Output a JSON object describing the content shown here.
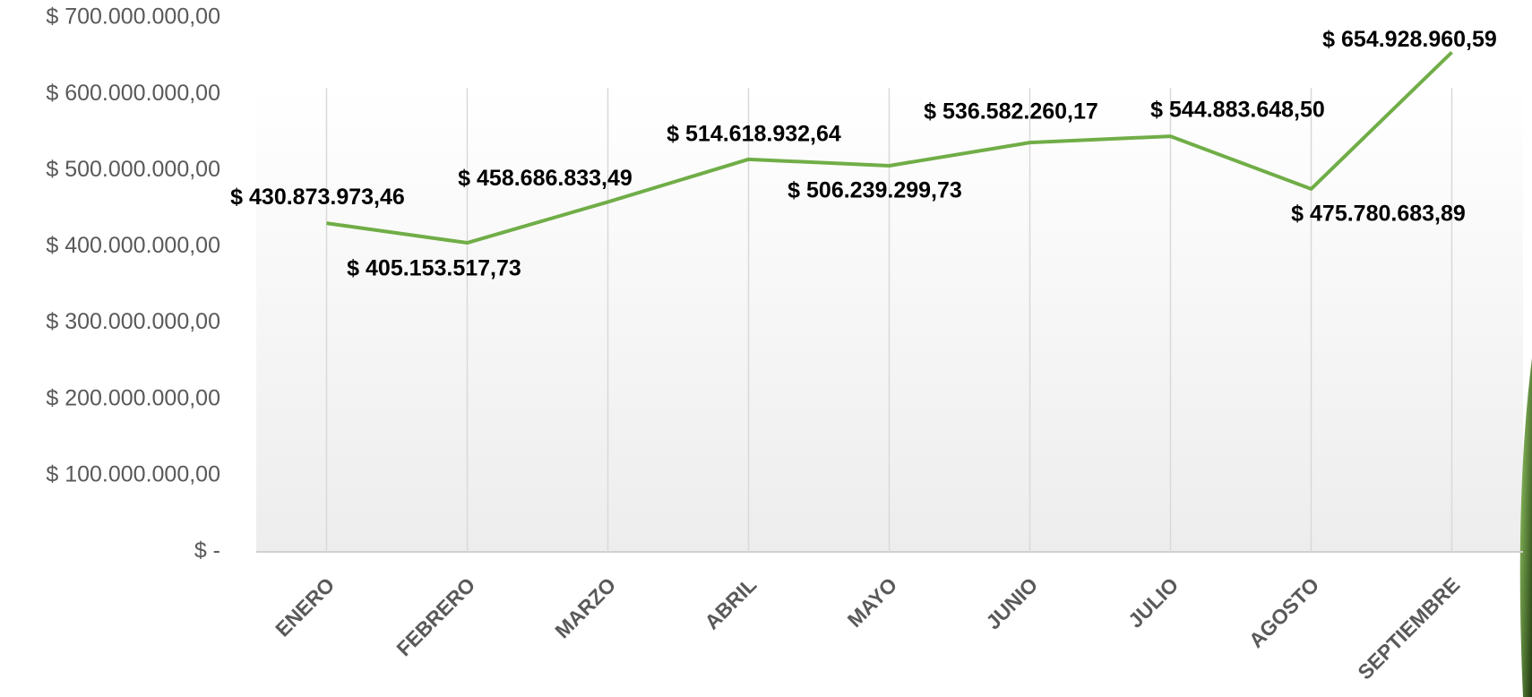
{
  "chart_data": {
    "type": "line",
    "categories": [
      "ENERO",
      "FEBRERO",
      "MARZO",
      "ABRIL",
      "MAYO",
      "JUNIO",
      "JULIO",
      "AGOSTO",
      "SEPTIEMBRE"
    ],
    "series": [
      {
        "color": "#70ad47",
        "values": [
          430873973.46,
          405153517.73,
          458686833.49,
          514618932.64,
          506239299.73,
          536582260.17,
          544883648.5,
          475780683.89,
          654928960.59
        ],
        "value_labels": [
          "$ 430.873.973,46",
          "$ 405.153.517,73",
          "$ 458.686.833,49",
          "$ 514.618.932,64",
          "$ 506.239.299,73",
          "$ 536.582.260,17",
          "$ 544.883.648,50",
          "$ 475.780.683,89",
          "$ 654.928.960,59"
        ]
      }
    ],
    "ylim": [
      0,
      700000000
    ],
    "yticks": [
      {
        "value": 0,
        "label": "$ -"
      },
      {
        "value": 100000000,
        "label": "$ 100.000.000,00"
      },
      {
        "value": 200000000,
        "label": "$ 200.000.000,00"
      },
      {
        "value": 300000000,
        "label": "$ 300.000.000,00"
      },
      {
        "value": 400000000,
        "label": "$ 400.000.000,00"
      },
      {
        "value": 500000000,
        "label": "$ 500.000.000,00"
      },
      {
        "value": 600000000,
        "label": "$ 600.000.000,00"
      },
      {
        "value": 700000000,
        "label": "$ 700.000.000,00"
      }
    ],
    "grid": false
  }
}
